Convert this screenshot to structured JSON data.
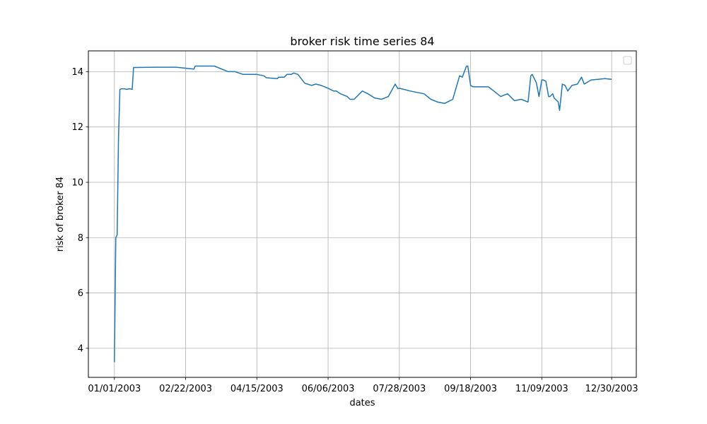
{
  "chart_data": {
    "type": "line",
    "title": "broker risk time series 84",
    "xlabel": "dates",
    "ylabel": "risk of broker 84",
    "xlim": [
      "2002-12-13",
      "2004-01-17"
    ],
    "ylim": [
      2.95,
      14.75
    ],
    "x_ticks": [
      "2003-01-01",
      "2003-02-22",
      "2003-04-15",
      "2003-06-06",
      "2003-07-28",
      "2003-09-18",
      "2003-11-09",
      "2003-12-30"
    ],
    "x_tick_labels": [
      "01/01/2003",
      "02/22/2003",
      "04/15/2003",
      "06/06/2003",
      "07/28/2003",
      "09/18/2003",
      "11/09/2003",
      "12/30/2003"
    ],
    "y_ticks": [
      4,
      6,
      8,
      10,
      12,
      14
    ],
    "y_tick_labels": [
      "4",
      "6",
      "8",
      "10",
      "12",
      "14"
    ],
    "grid": true,
    "legend": "top-right (empty)",
    "line_color": "#1f77b4",
    "series": [
      {
        "x": [
          "2003-01-01",
          "2003-01-02",
          "2003-01-03",
          "2003-01-04",
          "2003-01-05",
          "2003-01-06",
          "2003-01-08",
          "2003-01-10",
          "2003-01-12",
          "2003-01-14",
          "2003-01-15",
          "2003-01-16",
          "2003-01-31",
          "2003-02-15",
          "2003-02-28",
          "2003-03-01",
          "2003-03-05",
          "2003-03-10",
          "2003-03-12",
          "2003-03-15",
          "2003-03-25",
          "2003-03-30",
          "2003-04-05",
          "2003-04-15",
          "2003-04-20",
          "2003-04-22",
          "2003-04-30",
          "2003-05-01",
          "2003-05-05",
          "2003-05-07",
          "2003-05-10",
          "2003-05-12",
          "2003-05-15",
          "2003-05-20",
          "2003-05-25",
          "2003-05-28",
          "2003-06-01",
          "2003-06-06",
          "2003-06-10",
          "2003-06-12",
          "2003-06-15",
          "2003-06-20",
          "2003-06-22",
          "2003-06-25",
          "2003-07-01",
          "2003-07-05",
          "2003-07-10",
          "2003-07-15",
          "2003-07-20",
          "2003-07-25",
          "2003-07-27",
          "2003-07-28",
          "2003-08-05",
          "2003-08-15",
          "2003-08-20",
          "2003-08-25",
          "2003-08-30",
          "2003-09-05",
          "2003-09-10",
          "2003-09-12",
          "2003-09-15",
          "2003-09-16",
          "2003-09-18",
          "2003-09-20",
          "2003-10-01",
          "2003-10-05",
          "2003-10-10",
          "2003-10-15",
          "2003-10-20",
          "2003-10-25",
          "2003-10-30",
          "2003-11-01",
          "2003-11-02",
          "2003-11-05",
          "2003-11-07",
          "2003-11-09",
          "2003-11-10",
          "2003-11-12",
          "2003-11-14",
          "2003-11-15",
          "2003-11-17",
          "2003-11-18",
          "2003-11-19",
          "2003-11-21",
          "2003-11-22",
          "2003-11-24",
          "2003-11-26",
          "2003-11-28",
          "2003-12-01",
          "2003-12-05",
          "2003-12-08",
          "2003-12-10",
          "2003-12-15",
          "2003-12-20",
          "2003-12-25",
          "2003-12-30"
        ],
        "y": [
          3.5,
          8.0,
          8.1,
          11.6,
          13.35,
          13.38,
          13.38,
          13.36,
          13.38,
          13.36,
          14.15,
          14.15,
          14.16,
          14.16,
          14.09,
          14.2,
          14.2,
          14.2,
          14.2,
          14.2,
          14.0,
          14.0,
          13.9,
          13.9,
          13.85,
          13.78,
          13.75,
          13.8,
          13.8,
          13.9,
          13.9,
          13.95,
          13.9,
          13.58,
          13.5,
          13.55,
          13.5,
          13.4,
          13.3,
          13.3,
          13.2,
          13.1,
          13.0,
          13.0,
          13.3,
          13.2,
          13.05,
          13.0,
          13.1,
          13.55,
          13.38,
          13.4,
          13.3,
          13.2,
          13.0,
          12.9,
          12.85,
          13.0,
          13.85,
          13.8,
          14.2,
          14.2,
          13.5,
          13.45,
          13.45,
          13.3,
          13.1,
          13.2,
          12.95,
          13.0,
          12.9,
          13.85,
          13.9,
          13.6,
          13.1,
          13.7,
          13.7,
          13.65,
          13.1,
          13.1,
          13.2,
          13.05,
          13.0,
          12.9,
          12.6,
          13.55,
          13.5,
          13.3,
          13.5,
          13.55,
          13.8,
          13.55,
          13.7,
          13.72,
          13.75,
          13.72
        ]
      }
    ]
  }
}
